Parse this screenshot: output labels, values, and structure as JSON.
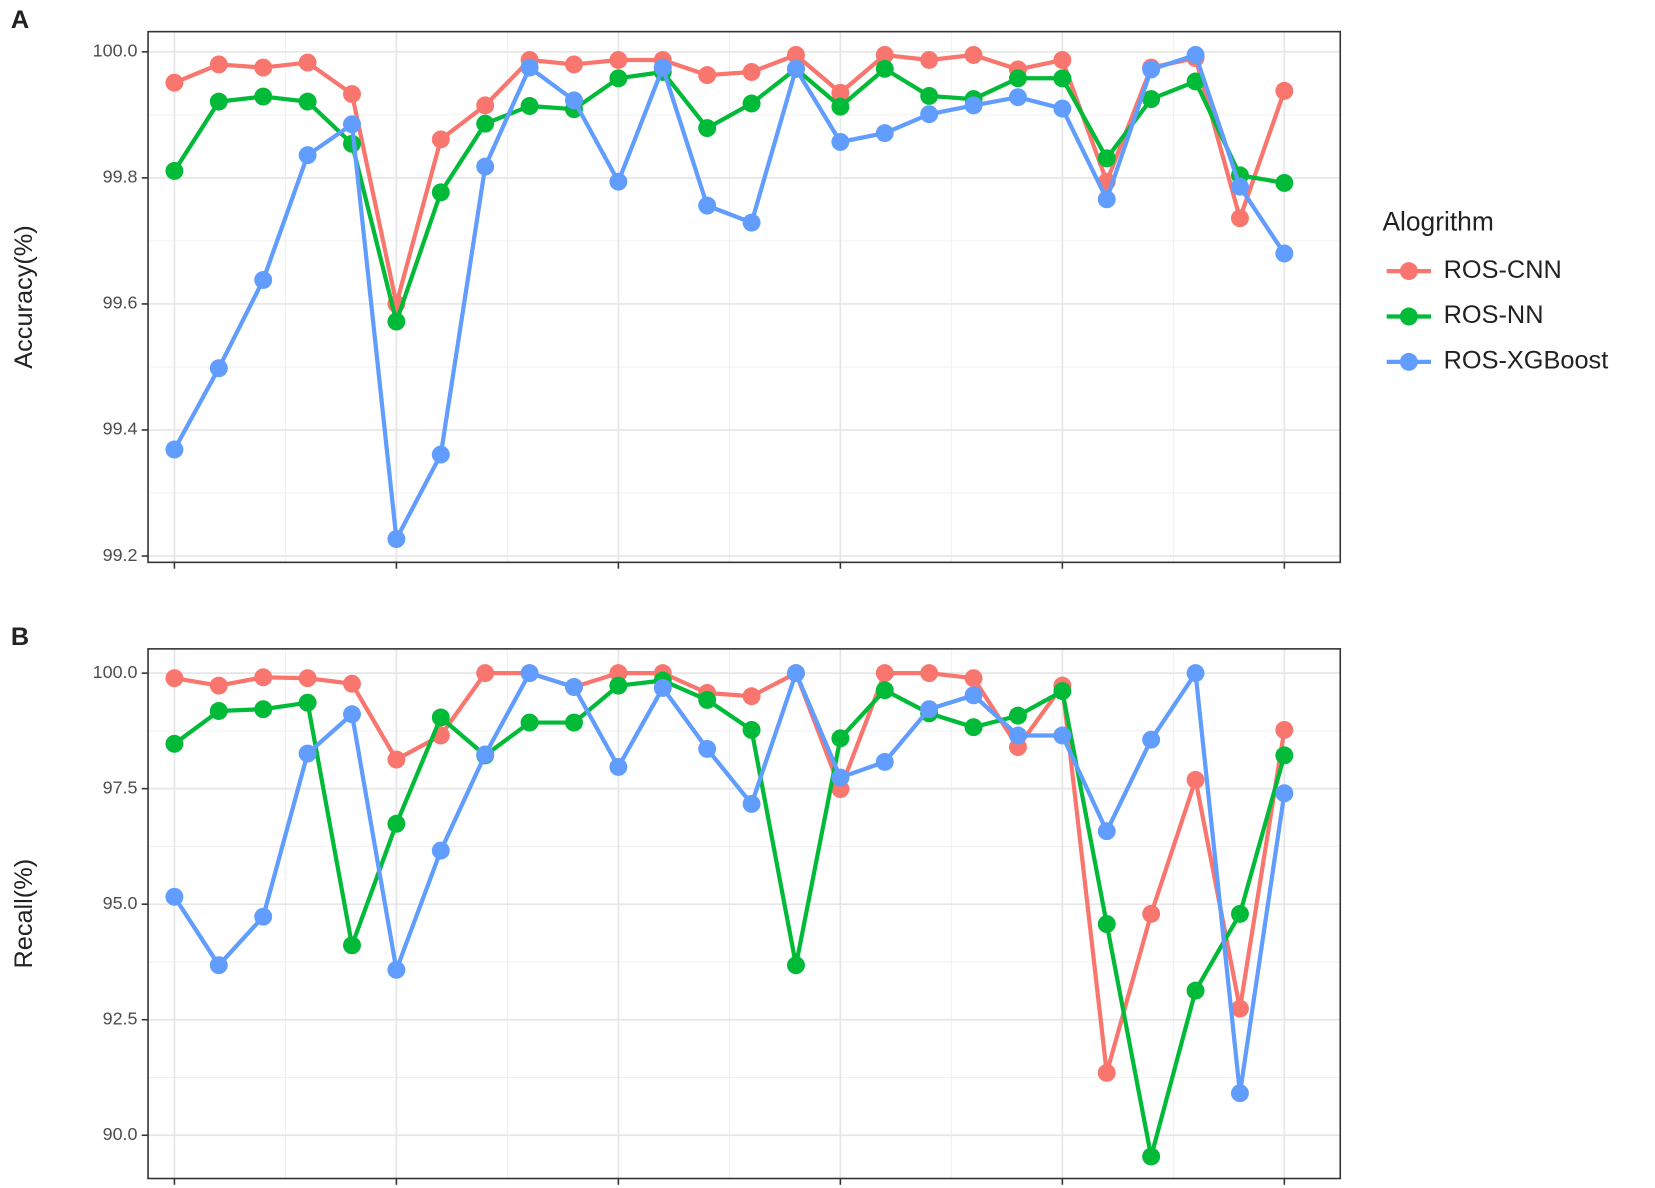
{
  "chart_data": [
    {
      "type": "line",
      "panel_label": "A",
      "ylabel": "Accuracy(%)",
      "legend_title": "Alogrithm",
      "categories": [
        null,
        null,
        null,
        null,
        null,
        null,
        null,
        null,
        null,
        null,
        null,
        null,
        null,
        null,
        null,
        null,
        null,
        null,
        null,
        null,
        null,
        null,
        null,
        null,
        null,
        null
      ],
      "ylim": [
        99.19,
        100.032
      ],
      "yticks": [
        99.2,
        99.4,
        99.6,
        99.8,
        {
          "value": 100,
          "label": "100.0"
        }
      ],
      "grid": true,
      "series": [
        {
          "name": "ROS-CNN",
          "color": "#F8766D",
          "values": [
            99.951,
            99.98,
            99.975,
            99.983,
            99.933,
            99.6,
            99.861,
            99.915,
            99.987,
            99.98,
            99.987,
            99.987,
            99.963,
            99.968,
            99.995,
            99.935,
            99.995,
            99.987,
            99.995,
            99.972,
            99.987,
            99.794,
            99.975,
            99.99,
            99.736,
            99.938
          ]
        },
        {
          "name": "ROS-NN",
          "color": "#00BA38",
          "values": [
            99.811,
            99.921,
            99.929,
            99.921,
            99.854,
            99.572,
            99.777,
            99.886,
            99.914,
            99.909,
            99.958,
            99.968,
            99.879,
            99.918,
            99.973,
            99.913,
            99.973,
            99.93,
            99.925,
            99.958,
            99.958,
            99.831,
            99.925,
            99.953,
            99.804,
            99.792
          ]
        },
        {
          "name": "ROS-XGBoost",
          "color": "#619CFF",
          "values": [
            99.369,
            99.498,
            99.638,
            99.836,
            99.885,
            99.227,
            99.361,
            99.818,
            99.975,
            99.923,
            99.794,
            99.975,
            99.756,
            99.729,
            99.973,
            99.857,
            99.871,
            99.901,
            99.915,
            99.928,
            99.91,
            99.766,
            99.972,
            99.995,
            99.786,
            99.68
          ]
        }
      ]
    },
    {
      "type": "line",
      "panel_label": "B",
      "ylabel": "Recall(%)",
      "categories": [
        null,
        null,
        null,
        null,
        null,
        null,
        null,
        null,
        null,
        null,
        null,
        null,
        null,
        null,
        null,
        null,
        null,
        null,
        null,
        null,
        null,
        null,
        null,
        null,
        null,
        null
      ],
      "ylim": [
        89.064,
        100.525
      ],
      "yticks": [
        {
          "value": 90,
          "label": "90.0"
        },
        92.5,
        {
          "value": 95,
          "label": "95.0"
        },
        97.5,
        {
          "value": 100,
          "label": "100.0"
        }
      ],
      "grid": true,
      "series": [
        {
          "name": "ROS-CNN",
          "color": "#F8766D",
          "values": [
            99.89,
            99.73,
            99.91,
            99.89,
            99.77,
            98.13,
            98.65,
            100,
            100,
            99.7,
            100,
            100,
            99.57,
            99.5,
            100,
            97.49,
            100,
            100,
            99.89,
            98.4,
            99.73,
            91.35,
            94.79,
            97.69,
            92.74,
            98.77
          ]
        },
        {
          "name": "ROS-NN",
          "color": "#00BA38",
          "values": [
            98.47,
            99.18,
            99.22,
            99.36,
            94.11,
            96.74,
            99.04,
            98.22,
            98.93,
            98.93,
            99.73,
            99.84,
            99.42,
            98.77,
            93.68,
            98.59,
            99.63,
            99.13,
            98.83,
            99.08,
            99.61,
            94.57,
            89.54,
            93.13,
            94.79,
            98.22
          ]
        },
        {
          "name": "ROS-XGBoost",
          "color": "#619CFF",
          "values": [
            95.16,
            93.68,
            94.73,
            98.26,
            99.11,
            93.58,
            96.16,
            98.24,
            100,
            99.7,
            97.97,
            99.68,
            98.36,
            97.17,
            100,
            97.74,
            98.08,
            99.22,
            99.52,
            98.65,
            98.65,
            96.58,
            98.56,
            100,
            90.91,
            97.4
          ]
        }
      ]
    }
  ]
}
